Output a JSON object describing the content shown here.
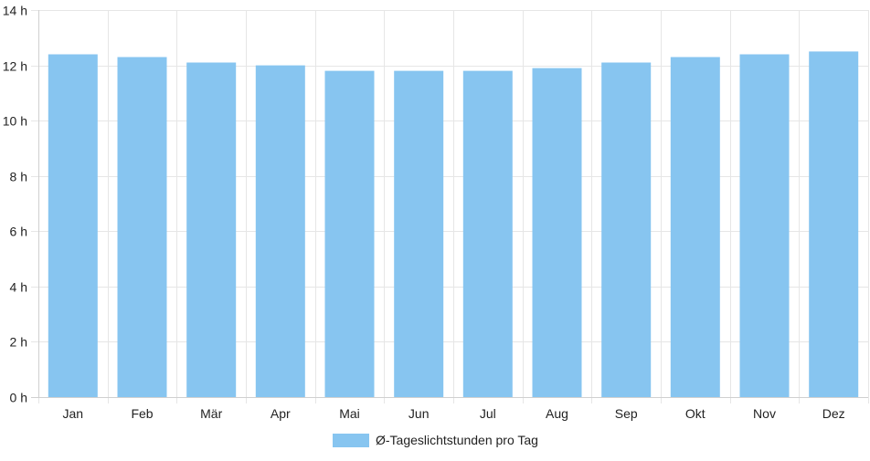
{
  "chart_data": {
    "type": "bar",
    "categories": [
      "Jan",
      "Feb",
      "Mär",
      "Apr",
      "Mai",
      "Jun",
      "Jul",
      "Aug",
      "Sep",
      "Okt",
      "Nov",
      "Dez"
    ],
    "series": [
      {
        "name": "Ø-Tageslichtstunden pro Tag",
        "values": [
          12.4,
          12.3,
          12.1,
          12.0,
          11.8,
          11.8,
          11.8,
          11.9,
          12.1,
          12.3,
          12.4,
          12.5
        ],
        "color": "#87c5f0"
      }
    ],
    "y_ticks": [
      "0 h",
      "2 h",
      "4 h",
      "6 h",
      "8 h",
      "10 h",
      "12 h",
      "14 h"
    ],
    "ylim": [
      0,
      14
    ],
    "grid": true,
    "legend_position": "bottom",
    "colors": {
      "grid": "#e6e6e6",
      "axis": "#d0d0d0",
      "text": "#222222"
    }
  }
}
